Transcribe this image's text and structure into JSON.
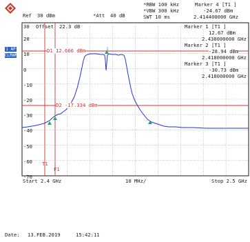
{
  "header": {
    "ref": "Ref",
    "ref_value": "30 dBm",
    "att": "*Att",
    "att_value": "40 dB",
    "rbw": "*RBW 100 kHz",
    "vbw": "*VBW 300 kHz",
    "swt": "SWT  10 ms",
    "marker4_title": "Marker 4 [T1 ]",
    "marker4_level": "-24.67 dBm",
    "marker4_freq": "2.414400000 GHz"
  },
  "grid": {
    "offset_label": "Offset",
    "offset_value": "22.3 dB",
    "y_ticks": [
      "30",
      "20",
      "10",
      "0",
      "-10",
      "-20",
      "-30",
      "-40",
      "-50",
      "-60",
      "-70"
    ],
    "side_labels": [
      "1 AP",
      "CLRWR"
    ]
  },
  "markers": [
    {
      "title": "Marker 1 [T1 ]",
      "level": "12.67 dBm",
      "freq": "2.438000000 GHz"
    },
    {
      "title": "Marker 2 [T1 ]",
      "level": "-28.94 dBm",
      "freq": "2.418000000 GHz"
    },
    {
      "title": "Marker 3 [T1 ]",
      "level": "-30.73 dBm",
      "freq": "2.418000000 GHz"
    }
  ],
  "lines": {
    "d1": "D1 12.666 dBm",
    "d2": "D2 -17.334 dBm",
    "t1": "T1",
    "f1": "F1"
  },
  "footer": {
    "start": "Start 2.4 GHz",
    "span": "10 MHz/",
    "stop": "Stop 2.5 GHz",
    "date_label": "Date:",
    "date": "13.FEB.2019",
    "time": "15:42:11"
  },
  "colors": {
    "trace": "#2233d6",
    "limit": "#d23030",
    "grid": "#9a9a9a",
    "marker": "#2aa06a"
  }
}
